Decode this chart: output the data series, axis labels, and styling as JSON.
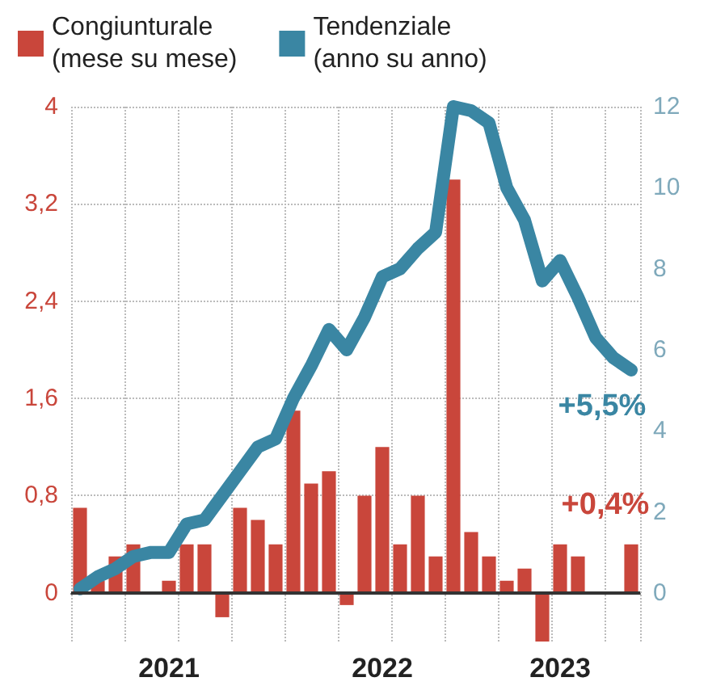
{
  "chart_data": {
    "type": "bar",
    "categories": [
      null,
      null,
      null,
      null,
      null,
      "2021",
      null,
      null,
      null,
      null,
      null,
      null,
      null,
      null,
      null,
      null,
      null,
      "2022",
      null,
      null,
      null,
      null,
      null,
      null,
      null,
      null,
      null,
      "2023",
      null,
      null,
      null,
      null
    ],
    "series": [
      {
        "name": "Congiunturale\n(mese su mese)",
        "color": "#c9463b",
        "values": [
          0.7,
          0.1,
          0.3,
          0.4,
          0.0,
          0.1,
          0.4,
          0.4,
          -0.2,
          0.7,
          0.6,
          0.4,
          1.5,
          0.9,
          1.0,
          -0.1,
          0.8,
          1.2,
          0.4,
          0.8,
          0.3,
          3.4,
          0.5,
          0.3,
          0.1,
          0.2,
          -0.4,
          0.4,
          0.3,
          0.0,
          0.0,
          0.4
        ],
        "value_labels": [
          null,
          null,
          null,
          null,
          null,
          null,
          null,
          null,
          null,
          null,
          null,
          null,
          null,
          null,
          null,
          null,
          null,
          null,
          null,
          null,
          null,
          null,
          null,
          null,
          null,
          null,
          null,
          null,
          null,
          null,
          null,
          "+0,4%"
        ]
      },
      {
        "name": "Tendenziale\n(anno su anno)",
        "type": "line",
        "axis": "y2",
        "color": "#3a86a3",
        "values": [
          0.1,
          0.4,
          0.6,
          0.9,
          1.0,
          1.0,
          1.7,
          1.8,
          2.4,
          3.0,
          3.6,
          3.8,
          4.8,
          5.6,
          6.5,
          6.0,
          6.8,
          7.8,
          8.0,
          8.5,
          8.9,
          12.0,
          11.9,
          11.6,
          10.0,
          9.2,
          7.7,
          8.2,
          7.3,
          6.3,
          5.8,
          5.5
        ],
        "value_labels": [
          null,
          null,
          null,
          null,
          null,
          null,
          null,
          null,
          null,
          null,
          null,
          null,
          null,
          null,
          null,
          null,
          null,
          null,
          null,
          null,
          null,
          null,
          null,
          null,
          null,
          null,
          null,
          null,
          null,
          null,
          null,
          "+5,5%"
        ]
      }
    ],
    "ylim": [
      -0.4,
      4
    ],
    "yticks": [
      0,
      {
        "value": 0.8,
        "label": "0,8"
      },
      {
        "value": 1.6,
        "label": "1,6"
      },
      {
        "value": 2.4,
        "label": "2,4"
      },
      {
        "value": 3.2,
        "label": "3,2"
      },
      4
    ],
    "y2lim": [
      -1.2,
      12
    ],
    "y2ticks": [
      0,
      2,
      4,
      6,
      8,
      10,
      12
    ],
    "ref_lines": [
      {
        "axis": "y",
        "value": 0,
        "label": null,
        "color": "#333333"
      }
    ],
    "grid": true,
    "legend": "top",
    "marker": "none"
  }
}
